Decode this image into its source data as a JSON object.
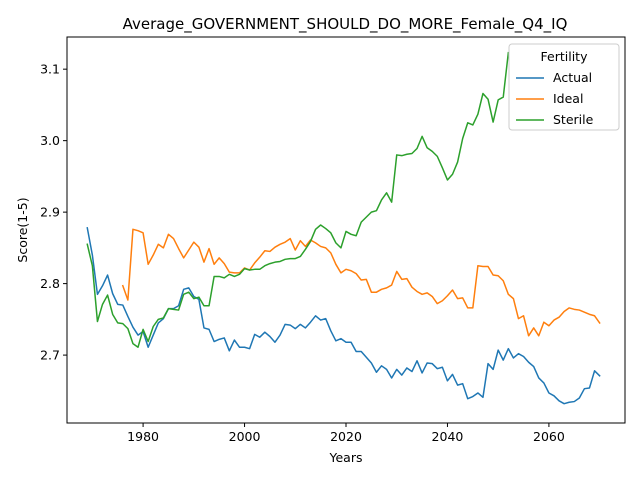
{
  "chart_data": {
    "type": "line",
    "title": "Average_GOVERNMENT_SHOULD_DO_MORE_Female_Q4_IQ",
    "xlabel": "Years",
    "ylabel": "Score(1-5)",
    "xlim": [
      1965,
      2075
    ],
    "ylim": [
      2.605,
      3.145
    ],
    "xticks": [
      1980,
      2000,
      2020,
      2040,
      2060
    ],
    "yticks": [
      2.7,
      2.8,
      2.9,
      3.0,
      3.1
    ],
    "xtick_labels": [
      "1980",
      "2000",
      "2020",
      "2040",
      "2060"
    ],
    "ytick_labels": [
      "2.7",
      "2.8",
      "2.9",
      "3.0",
      "3.1"
    ],
    "grid": false,
    "legend": {
      "title": "Fertility",
      "placement": "upper right"
    },
    "series": [
      {
        "name": "Actual",
        "color": "#1f77b4",
        "x": [
          1969,
          1970,
          1971,
          1972,
          1973,
          1974,
          1975,
          1976,
          1977,
          1978,
          1979,
          1980,
          1981,
          1982,
          1983,
          1984,
          1985,
          1986,
          1987,
          1988,
          1989,
          1990,
          1991,
          1992,
          1993,
          1994,
          1995,
          1996,
          1997,
          1998,
          1999,
          2000,
          2001,
          2002,
          2003,
          2004,
          2005,
          2006,
          2007,
          2008,
          2009,
          2010,
          2011,
          2012,
          2013,
          2014,
          2015,
          2016,
          2017,
          2018,
          2019,
          2020,
          2021,
          2022,
          2023,
          2024,
          2025,
          2026,
          2027,
          2028,
          2029,
          2030,
          2031,
          2032,
          2033,
          2034,
          2035,
          2036,
          2037,
          2038,
          2039,
          2040,
          2041,
          2042,
          2043,
          2044,
          2045,
          2046,
          2047,
          2048,
          2049,
          2050,
          2051,
          2052,
          2053,
          2054,
          2055,
          2056,
          2057,
          2058,
          2059,
          2060,
          2061,
          2062,
          2063,
          2064,
          2065,
          2066,
          2067,
          2068,
          2069,
          2070
        ],
        "y": [
          2.878,
          2.84,
          2.785,
          2.797,
          2.812,
          2.786,
          2.771,
          2.77,
          2.754,
          2.739,
          2.728,
          2.733,
          2.711,
          2.728,
          2.745,
          2.751,
          2.765,
          2.765,
          2.769,
          2.792,
          2.794,
          2.782,
          2.778,
          2.738,
          2.736,
          2.719,
          2.722,
          2.724,
          2.706,
          2.721,
          2.711,
          2.711,
          2.709,
          2.729,
          2.725,
          2.732,
          2.726,
          2.718,
          2.728,
          2.743,
          2.742,
          2.737,
          2.743,
          2.738,
          2.746,
          2.755,
          2.749,
          2.751,
          2.734,
          2.72,
          2.723,
          2.718,
          2.718,
          2.705,
          2.705,
          2.697,
          2.689,
          2.676,
          2.685,
          2.68,
          2.668,
          2.68,
          2.672,
          2.682,
          2.677,
          2.692,
          2.675,
          2.689,
          2.688,
          2.681,
          2.683,
          2.664,
          2.673,
          2.658,
          2.66,
          2.639,
          2.642,
          2.647,
          2.641,
          2.688,
          2.68,
          2.707,
          2.693,
          2.709,
          2.696,
          2.702,
          2.698,
          2.69,
          2.684,
          2.668,
          2.661,
          2.647,
          2.643,
          2.636,
          2.632,
          2.634,
          2.635,
          2.64,
          2.653,
          2.654,
          2.678,
          2.671
        ]
      },
      {
        "name": "Ideal",
        "color": "#ff7f0e",
        "x": [
          1976,
          1977,
          1978,
          1979,
          1980,
          1981,
          1982,
          1983,
          1984,
          1985,
          1986,
          1987,
          1988,
          1989,
          1990,
          1991,
          1992,
          1993,
          1994,
          1995,
          1996,
          1997,
          1998,
          1999,
          2000,
          2001,
          2002,
          2003,
          2004,
          2005,
          2006,
          2007,
          2008,
          2009,
          2010,
          2011,
          2012,
          2013,
          2014,
          2015,
          2016,
          2017,
          2018,
          2019,
          2020,
          2021,
          2022,
          2023,
          2024,
          2025,
          2026,
          2027,
          2028,
          2029,
          2030,
          2031,
          2032,
          2033,
          2034,
          2035,
          2036,
          2037,
          2038,
          2039,
          2040,
          2041,
          2042,
          2043,
          2044,
          2045,
          2046,
          2047,
          2048,
          2049,
          2050,
          2051,
          2052,
          2053,
          2054,
          2055,
          2056,
          2057,
          2058,
          2059,
          2060,
          2061,
          2062,
          2063,
          2064,
          2065,
          2066,
          2067,
          2068,
          2069,
          2070
        ],
        "y": [
          2.797,
          2.777,
          2.876,
          2.874,
          2.871,
          2.827,
          2.84,
          2.855,
          2.85,
          2.869,
          2.863,
          2.849,
          2.836,
          2.847,
          2.858,
          2.851,
          2.83,
          2.849,
          2.827,
          2.836,
          2.828,
          2.816,
          2.815,
          2.815,
          2.822,
          2.819,
          2.829,
          2.837,
          2.846,
          2.845,
          2.851,
          2.855,
          2.858,
          2.863,
          2.847,
          2.86,
          2.852,
          2.861,
          2.857,
          2.852,
          2.85,
          2.843,
          2.827,
          2.815,
          2.82,
          2.818,
          2.814,
          2.805,
          2.806,
          2.788,
          2.788,
          2.792,
          2.794,
          2.798,
          2.817,
          2.806,
          2.807,
          2.795,
          2.789,
          2.785,
          2.787,
          2.782,
          2.772,
          2.776,
          2.783,
          2.791,
          2.779,
          2.78,
          2.766,
          2.766,
          2.825,
          2.824,
          2.824,
          2.812,
          2.811,
          2.804,
          2.785,
          2.779,
          2.751,
          2.755,
          2.727,
          2.738,
          2.727,
          2.746,
          2.741,
          2.749,
          2.753,
          2.761,
          2.766,
          2.764,
          2.763,
          2.76,
          2.757,
          2.755,
          2.745
        ]
      },
      {
        "name": "Sterile",
        "color": "#2ca02c",
        "x": [
          1969,
          1970,
          1971,
          1972,
          1973,
          1974,
          1975,
          1976,
          1977,
          1978,
          1979,
          1980,
          1981,
          1982,
          1983,
          1984,
          1985,
          1986,
          1987,
          1988,
          1989,
          1990,
          1991,
          1992,
          1993,
          1994,
          1995,
          1996,
          1997,
          1998,
          1999,
          2000,
          2001,
          2002,
          2003,
          2004,
          2005,
          2006,
          2007,
          2008,
          2009,
          2010,
          2011,
          2012,
          2013,
          2014,
          2015,
          2016,
          2017,
          2018,
          2019,
          2020,
          2021,
          2022,
          2023,
          2024,
          2025,
          2026,
          2027,
          2028,
          2029,
          2030,
          2031,
          2032,
          2033,
          2034,
          2035,
          2036,
          2037,
          2038,
          2039,
          2040,
          2041,
          2042,
          2043,
          2044,
          2045,
          2046,
          2047,
          2048,
          2049,
          2050,
          2051,
          2052
        ],
        "y": [
          2.855,
          2.825,
          2.747,
          2.771,
          2.784,
          2.757,
          2.745,
          2.744,
          2.737,
          2.716,
          2.711,
          2.736,
          2.719,
          2.74,
          2.75,
          2.752,
          2.765,
          2.764,
          2.763,
          2.785,
          2.788,
          2.779,
          2.781,
          2.769,
          2.769,
          2.81,
          2.81,
          2.808,
          2.813,
          2.81,
          2.813,
          2.821,
          2.819,
          2.82,
          2.82,
          2.825,
          2.828,
          2.83,
          2.831,
          2.834,
          2.835,
          2.835,
          2.838,
          2.848,
          2.859,
          2.876,
          2.882,
          2.877,
          2.871,
          2.857,
          2.85,
          2.873,
          2.869,
          2.867,
          2.886,
          2.893,
          2.9,
          2.902,
          2.917,
          2.927,
          2.914,
          2.98,
          2.979,
          2.981,
          2.982,
          2.989,
          3.006,
          2.99,
          2.985,
          2.978,
          2.962,
          2.945,
          2.953,
          2.97,
          3.003,
          3.025,
          3.022,
          3.037,
          3.066,
          3.058,
          3.026,
          3.057,
          3.061,
          3.123
        ]
      }
    ]
  }
}
